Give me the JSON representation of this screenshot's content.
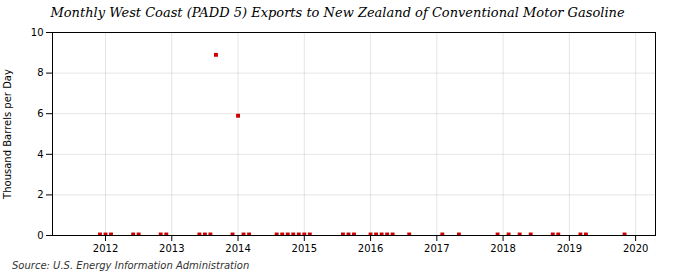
{
  "chart_data": {
    "type": "scatter",
    "title": "Monthly West Coast (PADD 5) Exports to New Zealand of Conventional Motor Gasoline",
    "ylabel": "Thousand Barrels per Day",
    "source": "Source: U.S. Energy Information Administration",
    "x": [
      2011.917,
      2012.0,
      2012.083,
      2012.417,
      2012.5,
      2012.833,
      2012.917,
      2013.417,
      2013.5,
      2013.583,
      2013.667,
      2013.917,
      2014.0,
      2014.083,
      2014.167,
      2014.583,
      2014.667,
      2014.75,
      2014.833,
      2014.917,
      2015.0,
      2015.083,
      2015.583,
      2015.667,
      2015.75,
      2016.0,
      2016.083,
      2016.167,
      2016.25,
      2016.333,
      2016.583,
      2017.083,
      2017.333,
      2017.917,
      2018.083,
      2018.25,
      2018.417,
      2018.75,
      2018.833,
      2019.167,
      2019.25,
      2019.833
    ],
    "values": [
      0.05,
      0.05,
      0.05,
      0.05,
      0.05,
      0.05,
      0.05,
      0.05,
      0.05,
      0.05,
      8.9,
      0.05,
      5.9,
      0.05,
      0.05,
      0.05,
      0.05,
      0.05,
      0.05,
      0.05,
      0.05,
      0.05,
      0.05,
      0.05,
      0.05,
      0.05,
      0.05,
      0.05,
      0.05,
      0.05,
      0.05,
      0.05,
      0.05,
      0.05,
      0.05,
      0.05,
      0.05,
      0.05,
      0.05,
      0.05,
      0.05,
      0.05
    ],
    "color": "#cc0000",
    "marker": "square",
    "xlim": [
      2011.2,
      2020.3
    ],
    "xticks": [
      2012,
      2013,
      2014,
      2015,
      2016,
      2017,
      2018,
      2019,
      2020
    ],
    "ylim": [
      0,
      10
    ],
    "yticks": [
      0,
      2,
      4,
      6,
      8,
      10
    ],
    "grid": true
  }
}
